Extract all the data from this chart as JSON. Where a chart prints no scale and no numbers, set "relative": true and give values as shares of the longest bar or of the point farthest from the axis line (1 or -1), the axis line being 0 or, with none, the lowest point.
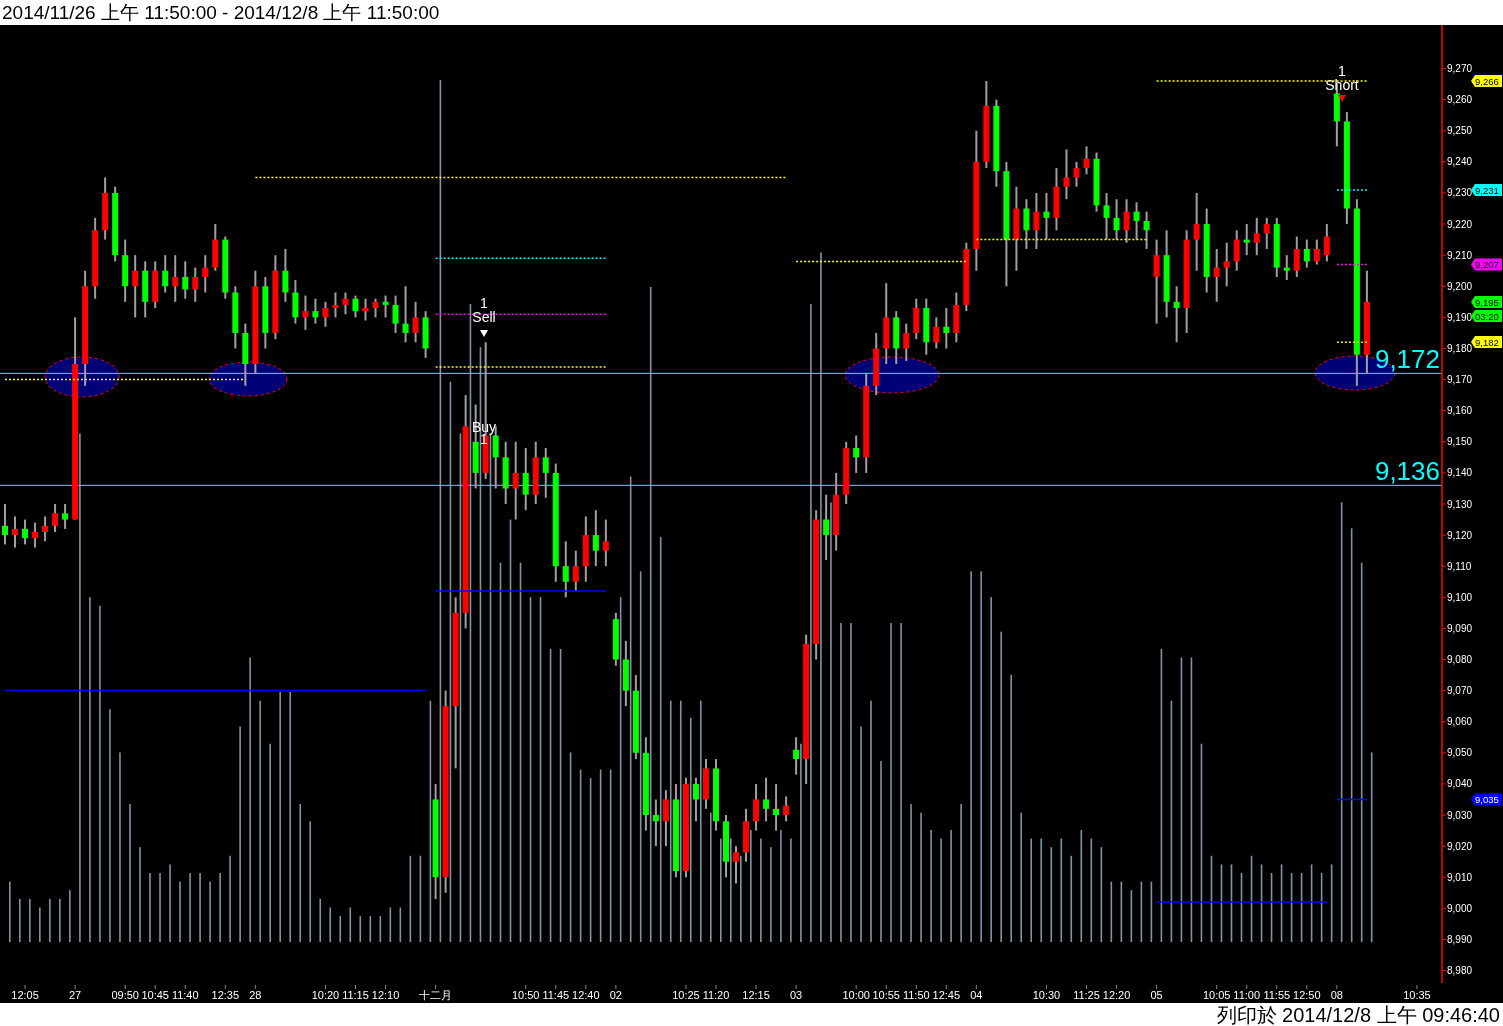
{
  "chart_data": [
    {
      "type": "candlestick",
      "title": "2014/11/26 上午 11:50:00 - 2014/12/8 上午 11:50:00",
      "categories": [
        null,
        null,
        "12:05",
        null,
        null,
        null,
        null,
        "27",
        null,
        null,
        null,
        null,
        "09:50",
        null,
        null,
        "10:45",
        null,
        null,
        "11:40",
        null,
        null,
        null,
        "12:35",
        null,
        null,
        "28",
        null,
        null,
        null,
        null,
        null,
        null,
        "10:20",
        null,
        null,
        "11:15",
        null,
        null,
        "12:10",
        null,
        null,
        null,
        null,
        "十二月",
        null,
        null,
        null,
        null,
        null,
        null,
        null,
        null,
        "10:50",
        null,
        null,
        "11:45",
        null,
        null,
        "12:40",
        null,
        null,
        "02",
        null,
        null,
        null,
        null,
        null,
        null,
        "10:25",
        null,
        null,
        "11:20",
        null,
        null,
        null,
        "12:15",
        null,
        null,
        null,
        "03",
        null,
        null,
        null,
        null,
        null,
        "10:00",
        null,
        null,
        "10:55",
        null,
        null,
        "11:50",
        null,
        null,
        "12:45",
        null,
        null,
        "04",
        null,
        null,
        null,
        null,
        null,
        null,
        "10:30",
        null,
        null,
        null,
        "11:25",
        null,
        null,
        "12:20",
        null,
        null,
        null,
        "05",
        null,
        null,
        null,
        null,
        null,
        "10:05",
        null,
        null,
        "11:00",
        null,
        null,
        "11:55",
        null,
        null,
        "12:50",
        null,
        null,
        "08",
        null,
        null,
        null,
        null,
        null,
        null,
        null,
        "10:35",
        null,
        null
      ],
      "ohlc": [
        [
          9123,
          9130,
          9117,
          9120
        ],
        [
          9120,
          9126,
          9116,
          9122
        ],
        [
          9122,
          9125,
          9117,
          9119
        ],
        [
          9119,
          9124,
          9116,
          9121
        ],
        [
          9121,
          9126,
          9118,
          9123
        ],
        [
          9123,
          9130,
          9121,
          9127
        ],
        [
          9127,
          9130,
          9122,
          9125
        ],
        [
          9125,
          9190,
          9125,
          9175
        ],
        [
          9175,
          9205,
          9168,
          9200
        ],
        [
          9200,
          9222,
          9196,
          9218
        ],
        [
          9218,
          9235,
          9215,
          9230
        ],
        [
          9230,
          9232,
          9208,
          9210
        ],
        [
          9210,
          9215,
          9195,
          9200
        ],
        [
          9200,
          9210,
          9190,
          9205
        ],
        [
          9205,
          9208,
          9190,
          9195
        ],
        [
          9195,
          9208,
          9193,
          9205
        ],
        [
          9205,
          9210,
          9198,
          9200
        ],
        [
          9200,
          9210,
          9195,
          9203
        ],
        [
          9203,
          9208,
          9196,
          9199
        ],
        [
          9199,
          9206,
          9195,
          9203
        ],
        [
          9203,
          9210,
          9198,
          9206
        ],
        [
          9206,
          9220,
          9205,
          9215
        ],
        [
          9215,
          9216,
          9196,
          9198
        ],
        [
          9198,
          9200,
          9180,
          9185
        ],
        [
          9185,
          9188,
          9168,
          9175
        ],
        [
          9175,
          9205,
          9172,
          9200
        ],
        [
          9200,
          9203,
          9180,
          9185
        ],
        [
          9185,
          9210,
          9183,
          9205
        ],
        [
          9205,
          9212,
          9195,
          9198
        ],
        [
          9198,
          9202,
          9188,
          9190
        ],
        [
          9190,
          9197,
          9186,
          9192
        ],
        [
          9192,
          9196,
          9188,
          9190
        ],
        [
          9190,
          9195,
          9187,
          9193
        ],
        [
          9193,
          9198,
          9190,
          9194
        ],
        [
          9194,
          9198,
          9191,
          9196
        ],
        [
          9196,
          9197,
          9190,
          9192
        ],
        [
          9192,
          9196,
          9189,
          9193
        ],
        [
          9193,
          9196,
          9190,
          9195
        ],
        [
          9195,
          9197,
          9190,
          9194
        ],
        [
          9194,
          9197,
          9185,
          9188
        ],
        [
          9188,
          9200,
          9182,
          9185
        ],
        [
          9185,
          9195,
          9182,
          9190
        ],
        [
          9190,
          9192,
          9177,
          9180
        ],
        [
          9035,
          9040,
          9003,
          9010
        ],
        [
          9010,
          9070,
          9005,
          9065
        ],
        [
          9065,
          9100,
          9045,
          9095
        ],
        [
          9095,
          9165,
          9090,
          9155
        ],
        [
          9150,
          9162,
          9135,
          9140
        ],
        [
          9140,
          9182,
          9138,
          9152
        ],
        [
          9152,
          9155,
          9135,
          9145
        ],
        [
          9145,
          9150,
          9130,
          9135
        ],
        [
          9135,
          9150,
          9125,
          9140
        ],
        [
          9140,
          9148,
          9128,
          9133
        ],
        [
          9133,
          9150,
          9130,
          9145
        ],
        [
          9145,
          9148,
          9132,
          9140
        ],
        [
          9140,
          9143,
          9105,
          9110
        ],
        [
          9110,
          9118,
          9100,
          9105
        ],
        [
          9105,
          9115,
          9102,
          9110
        ],
        [
          9110,
          9126,
          9105,
          9120
        ],
        [
          9120,
          9128,
          9110,
          9115
        ],
        [
          9115,
          9125,
          9110,
          9118
        ],
        [
          9093,
          9095,
          9078,
          9080
        ],
        [
          9080,
          9086,
          9065,
          9070
        ],
        [
          9070,
          9075,
          9048,
          9050
        ],
        [
          9050,
          9055,
          9025,
          9030
        ],
        [
          9030,
          9035,
          9020,
          9028
        ],
        [
          9028,
          9038,
          9020,
          9035
        ],
        [
          9035,
          9040,
          9010,
          9012
        ],
        [
          9012,
          9042,
          9010,
          9040
        ],
        [
          9040,
          9042,
          9028,
          9035
        ],
        [
          9035,
          9048,
          9032,
          9045
        ],
        [
          9045,
          9048,
          9025,
          9028
        ],
        [
          9028,
          9030,
          9010,
          9015
        ],
        [
          9015,
          9020,
          9008,
          9018
        ],
        [
          9018,
          9032,
          9015,
          9028
        ],
        [
          9028,
          9040,
          9025,
          9035
        ],
        [
          9035,
          9042,
          9028,
          9032
        ],
        [
          9032,
          9040,
          9025,
          9030
        ],
        [
          9030,
          9036,
          9028,
          9033
        ],
        [
          9051,
          9055,
          9043,
          9048
        ],
        [
          9048,
          9088,
          9040,
          9085
        ],
        [
          9085,
          9128,
          9080,
          9125
        ],
        [
          9125,
          9133,
          9112,
          9120
        ],
        [
          9120,
          9140,
          9115,
          9133
        ],
        [
          9133,
          9150,
          9130,
          9148
        ],
        [
          9148,
          9152,
          9140,
          9145
        ],
        [
          9145,
          9172,
          9140,
          9168
        ],
        [
          9168,
          9185,
          9165,
          9180
        ],
        [
          9180,
          9201,
          9175,
          9190
        ],
        [
          9190,
          9192,
          9175,
          9180
        ],
        [
          9180,
          9188,
          9176,
          9185
        ],
        [
          9185,
          9196,
          9183,
          9193
        ],
        [
          9193,
          9196,
          9178,
          9182
        ],
        [
          9182,
          9190,
          9180,
          9187
        ],
        [
          9187,
          9193,
          9180,
          9185
        ],
        [
          9185,
          9198,
          9182,
          9194
        ],
        [
          9194,
          9214,
          9192,
          9212
        ],
        [
          9212,
          9250,
          9205,
          9240
        ],
        [
          9240,
          9266,
          9238,
          9258
        ],
        [
          9258,
          9260,
          9232,
          9237
        ],
        [
          9237,
          9240,
          9200,
          9215
        ],
        [
          9215,
          9232,
          9205,
          9225
        ],
        [
          9225,
          9228,
          9212,
          9218
        ],
        [
          9218,
          9230,
          9212,
          9224
        ],
        [
          9224,
          9230,
          9215,
          9222
        ],
        [
          9222,
          9238,
          9218,
          9232
        ],
        [
          9232,
          9244,
          9228,
          9235
        ],
        [
          9235,
          9240,
          9232,
          9238
        ],
        [
          9238,
          9245,
          9236,
          9241
        ],
        [
          9241,
          9243,
          9224,
          9226
        ],
        [
          9226,
          9230,
          9215,
          9222
        ],
        [
          9222,
          9228,
          9215,
          9218
        ],
        [
          9218,
          9228,
          9214,
          9224
        ],
        [
          9224,
          9227,
          9215,
          9221
        ],
        [
          9221,
          9224,
          9212,
          9218
        ],
        [
          9203,
          9215,
          9188,
          9210
        ],
        [
          9210,
          9218,
          9190,
          9195
        ],
        [
          9195,
          9200,
          9182,
          9193
        ],
        [
          9193,
          9218,
          9185,
          9215
        ],
        [
          9215,
          9230,
          9205,
          9220
        ],
        [
          9220,
          9225,
          9198,
          9203
        ],
        [
          9203,
          9212,
          9195,
          9206
        ],
        [
          9206,
          9214,
          9200,
          9208
        ],
        [
          9208,
          9218,
          9205,
          9215
        ],
        [
          9215,
          9220,
          9210,
          9214
        ],
        [
          9214,
          9222,
          9210,
          9217
        ],
        [
          9217,
          9222,
          9212,
          9220
        ],
        [
          9220,
          9222,
          9203,
          9206
        ],
        [
          9206,
          9210,
          9202,
          9205
        ],
        [
          9205,
          9216,
          9203,
          9212
        ],
        [
          9212,
          9215,
          9206,
          9208
        ],
        [
          9208,
          9215,
          9207,
          9212
        ],
        [
          9210,
          9220,
          9208,
          9216
        ],
        [
          9262,
          9265,
          9245,
          9253
        ],
        [
          9253,
          9256,
          9220,
          9225
        ],
        [
          9225,
          9228,
          9168,
          9178
        ],
        [
          9178,
          9205,
          9172,
          9195
        ],
        null,
        null,
        null,
        null,
        null,
        null,
        null
      ],
      "series": [
        {
          "type": "step",
          "color": "#ffff00",
          "line_style": "dotted",
          "values": [
            9170,
            9170,
            9170,
            9170,
            9170,
            9170,
            9170,
            9170,
            9170,
            9170,
            9170,
            9170,
            9170,
            9170,
            9170,
            9170,
            9170,
            9170,
            9170,
            9170,
            9170,
            9170,
            9170,
            9170,
            9170,
            9235,
            9235,
            9235,
            9235,
            9235,
            9235,
            9235,
            9235,
            9235,
            9235,
            9235,
            9235,
            9235,
            9235,
            9235,
            9235,
            9235,
            9235,
            9235,
            9235,
            9235,
            9235,
            9235,
            9235,
            9235,
            9235,
            9235,
            9235,
            9235,
            9235,
            9235,
            9235,
            9235,
            9235,
            9235,
            9235,
            9235,
            9235,
            9235,
            9235,
            9235,
            9235,
            9235,
            9235,
            9235,
            9235,
            9235,
            9235,
            9235,
            9235,
            9235,
            9235,
            9235,
            9235,
            9208,
            9208,
            9208,
            9208,
            9208,
            9208,
            9208,
            9208,
            9208,
            9208,
            9208,
            9208,
            9208,
            9208,
            9208,
            9208,
            9208,
            9208,
            9215,
            9215,
            9215,
            9215,
            9215,
            9215,
            9215,
            9215,
            9215,
            9215,
            9215,
            9215,
            9215,
            9215,
            9215,
            9215,
            9215,
            9215,
            9266,
            9266,
            9266,
            9266,
            9266,
            9266,
            9266,
            9266,
            9266,
            9266,
            9266,
            9266,
            9266,
            9266,
            9266,
            9266,
            9266,
            9266,
            9266,
            9266,
            9266,
            9266,
            null,
            null,
            null,
            null,
            null,
            null,
            null
          ]
        },
        {
          "type": "step",
          "color": "#ffff00",
          "line_style": "dotted",
          "values": [
            null,
            null,
            null,
            null,
            null,
            null,
            null,
            null,
            null,
            null,
            null,
            null,
            null,
            null,
            null,
            null,
            null,
            null,
            null,
            null,
            null,
            null,
            null,
            null,
            null,
            null,
            null,
            null,
            null,
            null,
            null,
            null,
            null,
            null,
            null,
            null,
            null,
            null,
            null,
            null,
            null,
            null,
            null,
            9174,
            9174,
            9174,
            9174,
            9174,
            9174,
            9174,
            9174,
            9174,
            9174,
            9174,
            9174,
            9174,
            9174,
            9174,
            9174,
            9174,
            9174,
            null,
            null,
            null,
            null,
            null,
            null,
            null,
            null,
            null,
            null,
            null,
            null,
            null,
            null,
            null,
            null,
            null,
            null,
            null,
            null,
            null,
            null,
            null,
            null,
            null,
            null,
            null,
            null,
            null,
            null,
            null,
            null,
            null,
            null,
            null,
            null,
            null,
            null,
            null,
            null,
            null,
            null,
            null,
            null,
            null,
            null,
            null,
            null,
            null,
            null,
            null,
            null,
            null,
            null,
            null,
            null,
            null,
            null,
            null,
            null,
            null,
            null,
            null,
            null,
            null,
            null,
            null,
            null,
            null,
            null,
            null,
            null,
            9182,
            9182,
            9182,
            9182,
            null,
            null,
            null,
            null,
            null,
            null,
            null
          ]
        },
        {
          "type": "step",
          "color": "#0000ff",
          "line_style": "solid",
          "values": [
            9070,
            9070,
            9070,
            9070,
            9070,
            9070,
            9070,
            9070,
            9070,
            9070,
            9070,
            9070,
            9070,
            9070,
            9070,
            9070,
            9070,
            9070,
            9070,
            9070,
            9070,
            9070,
            9070,
            9070,
            9070,
            9070,
            9070,
            9070,
            9070,
            9070,
            9070,
            9070,
            9070,
            9070,
            9070,
            9070,
            9070,
            9070,
            9070,
            9070,
            9070,
            9070,
            9070,
            9102,
            9102,
            9102,
            9102,
            9102,
            9102,
            9102,
            9102,
            9102,
            9102,
            9102,
            9102,
            9102,
            9102,
            9102,
            9102,
            9102,
            9102,
            null,
            null,
            null,
            null,
            null,
            null,
            null,
            null,
            null,
            null,
            null,
            null,
            null,
            null,
            null,
            null,
            null,
            null,
            null,
            null,
            null,
            null,
            null,
            null,
            null,
            null,
            null,
            null,
            null,
            null,
            null,
            null,
            null,
            null,
            null,
            null,
            null,
            null,
            null,
            null,
            null,
            null,
            null,
            null,
            null,
            null,
            null,
            null,
            null,
            null,
            null,
            null,
            null,
            null,
            9002,
            9002,
            9002,
            9002,
            9002,
            9002,
            9002,
            9002,
            9002,
            9002,
            9002,
            9002,
            9002,
            9002,
            9002,
            9002,
            9002,
            9002,
            9035,
            9035,
            9035,
            9035,
            null,
            null,
            null,
            null,
            null,
            null,
            null
          ]
        },
        {
          "type": "step",
          "color": "#00ffff",
          "line_style": "dotted",
          "values": [
            null,
            null,
            null,
            null,
            null,
            null,
            null,
            null,
            null,
            null,
            null,
            null,
            null,
            null,
            null,
            null,
            null,
            null,
            null,
            null,
            null,
            null,
            null,
            null,
            null,
            null,
            null,
            null,
            null,
            null,
            null,
            null,
            null,
            null,
            null,
            null,
            null,
            null,
            null,
            null,
            null,
            null,
            null,
            9209,
            9209,
            9209,
            9209,
            9209,
            9209,
            9209,
            9209,
            9209,
            9209,
            9209,
            9209,
            9209,
            9209,
            9209,
            9209,
            9209,
            9209,
            null,
            null,
            null,
            null,
            null,
            null,
            null,
            null,
            null,
            null,
            null,
            null,
            null,
            null,
            null,
            null,
            null,
            null,
            null,
            null,
            null,
            null,
            null,
            null,
            null,
            null,
            null,
            null,
            null,
            null,
            null,
            null,
            null,
            null,
            null,
            null,
            null,
            null,
            null,
            null,
            null,
            null,
            null,
            null,
            null,
            null,
            null,
            null,
            null,
            null,
            null,
            null,
            null,
            null,
            null,
            null,
            null,
            null,
            null,
            null,
            null,
            null,
            null,
            null,
            null,
            null,
            null,
            null,
            null,
            null,
            null,
            null,
            9231,
            9231,
            9231,
            9231,
            null,
            null,
            null,
            null,
            null,
            null,
            null
          ]
        },
        {
          "type": "step",
          "color": "#ff00ff",
          "line_style": "dotted",
          "values": [
            null,
            null,
            null,
            null,
            null,
            null,
            null,
            null,
            null,
            null,
            null,
            null,
            null,
            null,
            null,
            null,
            null,
            null,
            null,
            null,
            null,
            null,
            null,
            null,
            null,
            null,
            null,
            null,
            null,
            null,
            null,
            null,
            null,
            null,
            null,
            null,
            null,
            null,
            null,
            null,
            null,
            null,
            null,
            9191,
            9191,
            9191,
            9191,
            9191,
            9191,
            9191,
            9191,
            9191,
            9191,
            9191,
            9191,
            9191,
            9191,
            9191,
            9191,
            9191,
            9191,
            null,
            null,
            null,
            null,
            null,
            null,
            null,
            null,
            null,
            null,
            null,
            null,
            null,
            null,
            null,
            null,
            null,
            null,
            null,
            null,
            null,
            null,
            null,
            null,
            null,
            null,
            null,
            null,
            null,
            null,
            null,
            null,
            null,
            null,
            null,
            null,
            null,
            null,
            null,
            null,
            null,
            null,
            null,
            null,
            null,
            null,
            null,
            null,
            null,
            null,
            null,
            null,
            null,
            null,
            null,
            null,
            null,
            null,
            null,
            null,
            null,
            null,
            null,
            null,
            null,
            null,
            null,
            null,
            null,
            null,
            null,
            null,
            9207,
            9207,
            9207,
            9207,
            null,
            null,
            null,
            null,
            null,
            null,
            null
          ]
        }
      ],
      "ref_lines": [
        {
          "axis": "y",
          "value": 9172,
          "label": "9,172",
          "color": "#00ffff"
        },
        {
          "axis": "y",
          "value": 9136,
          "label": "9,136",
          "color": "#00ffff"
        }
      ],
      "annotations": [
        "1",
        "Sell",
        "Buy",
        "1",
        "1",
        "Short",
        "9,266",
        "9,231",
        "9,207",
        "9,195",
        "03:20",
        "9,182",
        "9,035",
        "列印於 2014/12/8 上午 09:46:40"
      ],
      "ylim": [
        8976,
        9284
      ],
      "yticks": [
        {
          "value": 8980,
          "label": "8,980"
        },
        {
          "value": 8990,
          "label": "8,990"
        },
        {
          "value": 9000,
          "label": "9,000"
        },
        {
          "value": 9010,
          "label": "9,010"
        },
        {
          "value": 9020,
          "label": "9,020"
        },
        {
          "value": 9030,
          "label": "9,030"
        },
        {
          "value": 9040,
          "label": "9,040"
        },
        {
          "value": 9050,
          "label": "9,050"
        },
        {
          "value": 9060,
          "label": "9,060"
        },
        {
          "value": 9070,
          "label": "9,070"
        },
        {
          "value": 9080,
          "label": "9,080"
        },
        {
          "value": 9090,
          "label": "9,090"
        },
        {
          "value": 9100,
          "label": "9,100"
        },
        {
          "value": 9110,
          "label": "9,110"
        },
        {
          "value": 9120,
          "label": "9,120"
        },
        {
          "value": 9130,
          "label": "9,130"
        },
        {
          "value": 9140,
          "label": "9,140"
        },
        {
          "value": 9150,
          "label": "9,150"
        },
        {
          "value": 9160,
          "label": "9,160"
        },
        {
          "value": 9170,
          "label": "9,170"
        },
        {
          "value": 9180,
          "label": "9,180"
        },
        {
          "value": 9190,
          "label": "9,190"
        },
        {
          "value": 9200,
          "label": "9,200"
        },
        {
          "value": 9210,
          "label": "9,210"
        },
        {
          "value": 9220,
          "label": "9,220"
        },
        {
          "value": 9230,
          "label": "9,230"
        },
        {
          "value": 9240,
          "label": "9,240"
        },
        {
          "value": 9250,
          "label": "9,250"
        },
        {
          "value": 9260,
          "label": "9,260"
        },
        {
          "value": 9270,
          "label": "9,270"
        }
      ]
    },
    {
      "type": "bar",
      "relative": true,
      "color": "#8094a4",
      "categories": [
        null,
        null,
        null,
        null,
        null,
        null,
        null,
        null,
        null,
        null,
        null,
        null,
        null,
        null,
        null,
        null,
        null,
        null,
        null,
        null,
        null,
        null,
        null,
        null,
        null,
        null,
        null,
        null,
        null,
        null,
        null,
        null,
        null,
        null,
        null,
        null,
        null,
        null,
        null,
        null,
        null,
        null,
        null,
        null,
        null,
        null,
        null,
        null,
        null,
        null,
        null,
        null,
        null,
        null,
        null,
        null,
        null,
        null,
        null,
        null,
        null,
        null,
        null,
        null,
        null,
        null,
        null,
        null,
        null,
        null,
        null,
        null,
        null,
        null,
        null,
        null,
        null,
        null,
        null,
        null,
        null,
        null,
        null,
        null,
        null,
        null,
        null,
        null,
        null,
        null,
        null,
        null,
        null,
        null,
        null,
        null,
        null,
        null,
        null,
        null,
        null,
        null,
        null,
        null,
        null,
        null,
        null,
        null,
        null,
        null,
        null,
        null,
        null,
        null,
        null,
        null,
        null,
        null,
        null,
        null,
        null,
        null,
        null,
        null,
        null,
        null,
        null,
        null,
        null,
        null,
        null,
        null,
        null,
        null,
        null,
        null,
        null,
        null,
        null,
        null,
        null,
        null,
        null,
        null
      ],
      "values": [
        0.07,
        0.05,
        0.05,
        0.04,
        0.05,
        0.05,
        0.06,
        0.59,
        0.4,
        0.39,
        0.27,
        0.22,
        0.16,
        0.11,
        0.08,
        0.08,
        0.09,
        0.07,
        0.08,
        0.08,
        0.07,
        0.08,
        0.1,
        0.25,
        0.33,
        0.28,
        0.23,
        0.29,
        0.29,
        0.16,
        0.14,
        0.05,
        0.04,
        0.03,
        0.04,
        0.03,
        0.03,
        0.03,
        0.04,
        0.04,
        0.1,
        0.1,
        0.28,
        1,
        0.65,
        0.59,
        0.74,
        0.69,
        0.59,
        0.44,
        0.49,
        0.44,
        0.4,
        0.4,
        0.34,
        0.34,
        0.22,
        0.2,
        0.19,
        0.2,
        0.2,
        0.4,
        0.54,
        0.43,
        0.76,
        0.47,
        0.28,
        0.28,
        0.26,
        0.28,
        0.15,
        0.12,
        0.12,
        0.1,
        0.13,
        0.12,
        0.11,
        0.13,
        0.12,
        0.23,
        0.74,
        0.8,
        0.51,
        0.37,
        0.37,
        0.25,
        0.28,
        0.21,
        0.37,
        0.37,
        0.16,
        0.15,
        0.13,
        0.12,
        0.13,
        0.16,
        0.43,
        0.43,
        0.4,
        0.36,
        0.31,
        0.15,
        0.12,
        0.12,
        0.11,
        0.12,
        0.1,
        0.13,
        0.12,
        0.11,
        0.07,
        0.07,
        0.06,
        0.07,
        0.07,
        0.34,
        0.28,
        0.33,
        0.33,
        0.23,
        0.1,
        0.09,
        0.09,
        0.08,
        0.1,
        0.09,
        0.08,
        0.09,
        0.08,
        0.08,
        0.09,
        0.08,
        0.09,
        0.51,
        0.48,
        0.44,
        0.22,
        null,
        null,
        null,
        null,
        null,
        null,
        null
      ]
    }
  ]
}
